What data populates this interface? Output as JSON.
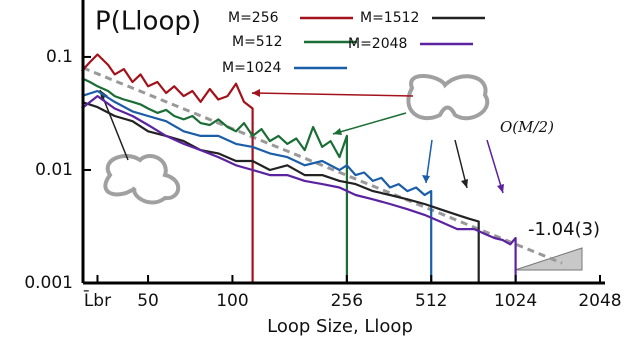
{
  "chart_data": {
    "type": "line",
    "title": "P(Lloop)",
    "x_label": "Loop Size, Lloop",
    "log_x": true,
    "log_y": true,
    "xlim": [
      29.3,
      2048
    ],
    "ylim": [
      0.001,
      0.3
    ],
    "xticks": [
      {
        "value": 33,
        "label": "L̄br"
      },
      50,
      100,
      256,
      512,
      1024,
      2048
    ],
    "yticks": [
      0.001,
      0.01,
      0.1
    ],
    "series": [
      {
        "name": "M=256",
        "color": "#a3121c",
        "x": [
          29,
          31,
          33,
          36,
          38,
          41,
          44,
          47,
          50,
          54,
          58,
          62,
          67,
          72,
          77,
          83,
          89,
          96,
          103,
          110,
          118,
          118
        ],
        "values": [
          0.075,
          0.09,
          0.105,
          0.085,
          0.07,
          0.078,
          0.06,
          0.07,
          0.055,
          0.06,
          0.048,
          0.055,
          0.045,
          0.05,
          0.04,
          0.052,
          0.042,
          0.045,
          0.058,
          0.04,
          0.035,
          0.001
        ]
      },
      {
        "name": "M=512",
        "color": "#1a6e35",
        "x": [
          29,
          31,
          33,
          36,
          38,
          41,
          44,
          47,
          50,
          54,
          58,
          62,
          67,
          72,
          77,
          83,
          89,
          96,
          103,
          110,
          118,
          127,
          136,
          146,
          157,
          169,
          181,
          194,
          209,
          224,
          241,
          256,
          256
        ],
        "values": [
          0.065,
          0.06,
          0.055,
          0.05,
          0.045,
          0.042,
          0.04,
          0.038,
          0.035,
          0.032,
          0.034,
          0.03,
          0.028,
          0.03,
          0.026,
          0.025,
          0.028,
          0.024,
          0.022,
          0.026,
          0.02,
          0.023,
          0.018,
          0.02,
          0.017,
          0.019,
          0.015,
          0.024,
          0.016,
          0.018,
          0.013,
          0.02,
          0.001
        ]
      },
      {
        "name": "M=1024",
        "color": "#1b5ea8",
        "x": [
          29,
          33,
          38,
          44,
          50,
          58,
          67,
          77,
          89,
          103,
          118,
          136,
          157,
          181,
          209,
          241,
          256,
          275,
          295,
          317,
          340,
          365,
          392,
          421,
          452,
          485,
          512,
          512
        ],
        "values": [
          0.045,
          0.05,
          0.04,
          0.033,
          0.03,
          0.027,
          0.022,
          0.02,
          0.02,
          0.017,
          0.016,
          0.014,
          0.013,
          0.011,
          0.012,
          0.01,
          0.011,
          0.009,
          0.0095,
          0.008,
          0.0085,
          0.007,
          0.0075,
          0.0065,
          0.007,
          0.006,
          0.0065,
          0.001
        ]
      },
      {
        "name": "M=1512",
        "color": "#222222",
        "x": [
          29,
          33,
          38,
          44,
          50,
          58,
          67,
          77,
          89,
          103,
          118,
          136,
          157,
          181,
          209,
          241,
          275,
          317,
          365,
          421,
          485,
          550,
          634,
          700,
          756,
          756
        ],
        "values": [
          0.04,
          0.036,
          0.03,
          0.027,
          0.022,
          0.02,
          0.018,
          0.015,
          0.014,
          0.012,
          0.012,
          0.01,
          0.011,
          0.009,
          0.009,
          0.008,
          0.0075,
          0.0065,
          0.006,
          0.0055,
          0.005,
          0.0045,
          0.004,
          0.0037,
          0.0035,
          0.001
        ]
      },
      {
        "name": "M=2048",
        "color": "#5b23a0",
        "x": [
          29,
          33,
          38,
          44,
          50,
          58,
          67,
          77,
          89,
          103,
          118,
          136,
          157,
          181,
          209,
          241,
          275,
          317,
          365,
          421,
          485,
          550,
          634,
          730,
          800,
          860,
          920,
          980,
          1024,
          1024
        ],
        "values": [
          0.035,
          0.045,
          0.035,
          0.03,
          0.025,
          0.02,
          0.017,
          0.015,
          0.013,
          0.011,
          0.01,
          0.009,
          0.009,
          0.008,
          0.0075,
          0.007,
          0.006,
          0.0055,
          0.005,
          0.0045,
          0.004,
          0.0035,
          0.003,
          0.003,
          0.0027,
          0.0025,
          0.0024,
          0.0022,
          0.0025,
          0.001
        ]
      }
    ],
    "reference_line": {
      "x": [
        29.3,
        1500
      ],
      "values": [
        0.08,
        0.0015
      ],
      "color": "#999999"
    },
    "annotations": [
      "O(M/2)",
      "-1.04(3)"
    ]
  }
}
